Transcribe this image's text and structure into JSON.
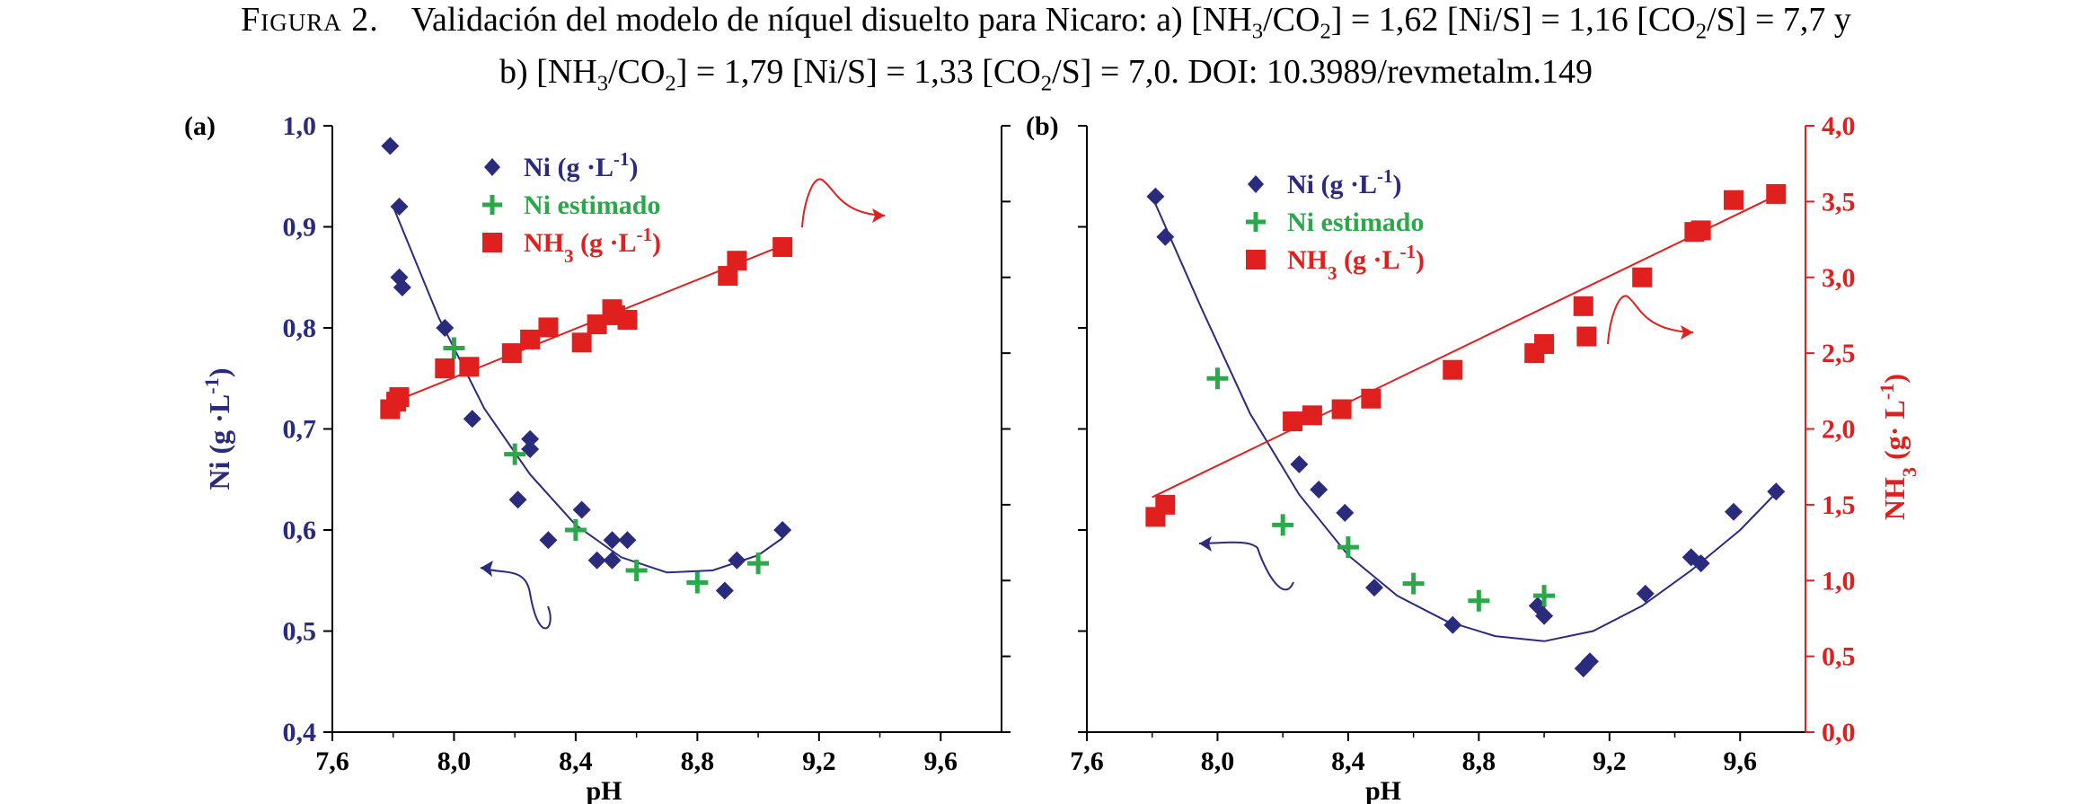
{
  "caption": {
    "label": "Figura 2.",
    "line1": "Validación del modelo de níquel disuelto para Nicaro: a) [NH3/CO2] = 1,62 [Ni/S] = 1,16 [CO2/S] = 7,7 y",
    "line2": "b) [NH3/CO2] = 1,79 [Ni/S] = 1,33 [CO2/S] = 7,0. DOI: 10.3989/revmetalm.149"
  },
  "colors": {
    "ni": "#2b2b7e",
    "ni_est": "#2aa84a",
    "nh3": "#e01f1f",
    "axis_right": "#e01f1f",
    "axis_left": "#2b2b7e"
  },
  "chart_data": [
    {
      "panel_label": "(a)",
      "type": "scatter",
      "xlabel": "pH",
      "ylabel": "Ni (g ·L-1)",
      "xlim": [
        7.6,
        9.8
      ],
      "ylim": [
        0.4,
        1.0
      ],
      "xticks": [
        "7,6",
        "8,0",
        "8,4",
        "8,8",
        "9,2",
        "9,6"
      ],
      "yticks": [
        "0,4",
        "0,5",
        "0,6",
        "0,7",
        "0,8",
        "0,9",
        "1,0"
      ],
      "y2lim": [
        0.0,
        4.0
      ],
      "legend": [
        "Ni (g ·L-1)",
        "Ni estimado",
        "NH3 (g ·L-1)"
      ],
      "series": [
        {
          "name": "Ni (g ·L-1)",
          "marker": "diamond",
          "axis": "left",
          "points": [
            [
              7.79,
              0.98
            ],
            [
              7.82,
              0.92
            ],
            [
              7.82,
              0.85
            ],
            [
              7.83,
              0.84
            ],
            [
              7.97,
              0.8
            ],
            [
              8.06,
              0.71
            ],
            [
              8.21,
              0.63
            ],
            [
              8.25,
              0.69
            ],
            [
              8.25,
              0.68
            ],
            [
              8.31,
              0.59
            ],
            [
              8.42,
              0.62
            ],
            [
              8.47,
              0.57
            ],
            [
              8.52,
              0.57
            ],
            [
              8.52,
              0.59
            ],
            [
              8.57,
              0.59
            ],
            [
              8.89,
              0.54
            ],
            [
              8.93,
              0.57
            ],
            [
              9.08,
              0.6
            ]
          ]
        },
        {
          "name": "Ni estimado",
          "marker": "plus",
          "axis": "left",
          "points": [
            [
              8.0,
              0.78
            ],
            [
              8.2,
              0.675
            ],
            [
              8.4,
              0.6
            ],
            [
              8.6,
              0.56
            ],
            [
              8.8,
              0.548
            ],
            [
              9.0,
              0.567
            ]
          ]
        },
        {
          "name": "NH3 (g ·L-1)",
          "marker": "square",
          "axis": "right",
          "points": [
            [
              7.79,
              2.13
            ],
            [
              7.81,
              2.18
            ],
            [
              7.82,
              2.21
            ],
            [
              7.97,
              2.4
            ],
            [
              8.05,
              2.41
            ],
            [
              8.19,
              2.5
            ],
            [
              8.25,
              2.59
            ],
            [
              8.31,
              2.67
            ],
            [
              8.42,
              2.57
            ],
            [
              8.47,
              2.69
            ],
            [
              8.52,
              2.79
            ],
            [
              8.53,
              2.75
            ],
            [
              8.57,
              2.72
            ],
            [
              8.9,
              3.01
            ],
            [
              8.93,
              3.11
            ],
            [
              9.08,
              3.2
            ]
          ]
        }
      ],
      "ni_fit": [
        [
          7.8,
          0.92
        ],
        [
          7.95,
          0.81
        ],
        [
          8.1,
          0.72
        ],
        [
          8.25,
          0.655
        ],
        [
          8.4,
          0.605
        ],
        [
          8.55,
          0.573
        ],
        [
          8.7,
          0.558
        ],
        [
          8.85,
          0.56
        ],
        [
          9.0,
          0.575
        ],
        [
          9.08,
          0.592
        ]
      ],
      "nh3_fit": [
        [
          7.79,
          2.17
        ],
        [
          9.08,
          3.21
        ]
      ]
    },
    {
      "panel_label": "(b)",
      "type": "scatter",
      "xlabel": "pH",
      "ylabel": "NH3 (g· L-1)",
      "xlim": [
        7.6,
        9.8
      ],
      "ylim": [
        0.4,
        1.0
      ],
      "xticks": [
        "7,6",
        "8,0",
        "8,4",
        "8,8",
        "9,2",
        "9,6"
      ],
      "y2lim": [
        0.0,
        4.0
      ],
      "y2ticks": [
        "0,0",
        "0,5",
        "1,0",
        "1,5",
        "2,0",
        "2,5",
        "3,0",
        "3,5",
        "4,0"
      ],
      "legend": [
        "Ni (g ·L-1)",
        "Ni estimado",
        "NH3 (g ·L-1)"
      ],
      "series": [
        {
          "name": "Ni (g ·L-1)",
          "marker": "diamond",
          "axis": "left",
          "points": [
            [
              7.81,
              0.93
            ],
            [
              7.84,
              0.89
            ],
            [
              8.25,
              0.665
            ],
            [
              8.31,
              0.64
            ],
            [
              8.39,
              0.617
            ],
            [
              8.48,
              0.543
            ],
            [
              8.72,
              0.506
            ],
            [
              8.98,
              0.525
            ],
            [
              9.0,
              0.515
            ],
            [
              9.12,
              0.463
            ],
            [
              9.14,
              0.47
            ],
            [
              9.31,
              0.537
            ],
            [
              9.45,
              0.573
            ],
            [
              9.48,
              0.567
            ],
            [
              9.58,
              0.618
            ],
            [
              9.71,
              0.638
            ]
          ]
        },
        {
          "name": "Ni estimado",
          "marker": "plus",
          "axis": "left",
          "points": [
            [
              8.0,
              0.75
            ],
            [
              8.2,
              0.605
            ],
            [
              8.4,
              0.583
            ],
            [
              8.6,
              0.547
            ],
            [
              8.8,
              0.53
            ],
            [
              9.0,
              0.535
            ]
          ]
        },
        {
          "name": "NH3 (g ·L-1)",
          "marker": "square",
          "axis": "right",
          "points": [
            [
              7.81,
              1.42
            ],
            [
              7.84,
              1.5
            ],
            [
              8.23,
              2.05
            ],
            [
              8.29,
              2.09
            ],
            [
              8.38,
              2.13
            ],
            [
              8.47,
              2.2
            ],
            [
              8.72,
              2.39
            ],
            [
              8.97,
              2.5
            ],
            [
              9.0,
              2.56
            ],
            [
              9.12,
              2.81
            ],
            [
              9.13,
              2.61
            ],
            [
              9.3,
              3.0
            ],
            [
              9.46,
              3.3
            ],
            [
              9.48,
              3.31
            ],
            [
              9.58,
              3.51
            ],
            [
              9.71,
              3.55
            ]
          ]
        }
      ],
      "ni_fit": [
        [
          7.8,
          0.93
        ],
        [
          7.95,
          0.82
        ],
        [
          8.1,
          0.715
        ],
        [
          8.25,
          0.635
        ],
        [
          8.4,
          0.575
        ],
        [
          8.55,
          0.535
        ],
        [
          8.7,
          0.51
        ],
        [
          8.85,
          0.495
        ],
        [
          9.0,
          0.49
        ],
        [
          9.15,
          0.5
        ],
        [
          9.3,
          0.525
        ],
        [
          9.45,
          0.56
        ],
        [
          9.6,
          0.6
        ],
        [
          9.72,
          0.64
        ]
      ],
      "nh3_fit": [
        [
          7.8,
          1.55
        ],
        [
          9.72,
          3.55
        ]
      ]
    }
  ]
}
